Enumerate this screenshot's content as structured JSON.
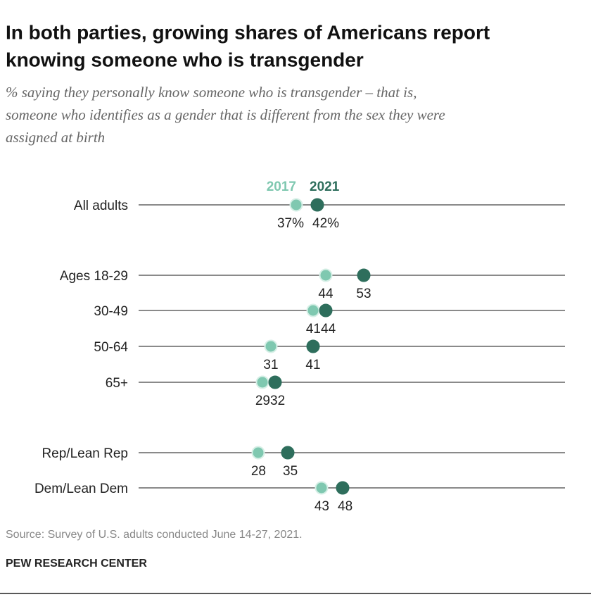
{
  "chart_data": {
    "type": "dot",
    "title_lines": [
      "In both parties, growing shares of Americans report",
      "knowing someone who is transgender"
    ],
    "subtitle_lines": [
      "% saying they personally know someone who is transgender – that is,",
      "someone who identifies as a gender that is different from the sex they were",
      "assigned at birth"
    ],
    "categories": [
      "All adults",
      "Ages 18-29",
      "30-49",
      "50-64",
      "65+",
      "Rep/Lean Rep",
      "Dem/Lean Dem"
    ],
    "series": [
      {
        "name": "2017",
        "color": "#7fc8b0",
        "values": [
          37,
          44,
          41,
          31,
          29,
          28,
          43
        ],
        "value_labels": [
          "37%",
          "44",
          "41",
          "31",
          "29",
          "28",
          "43"
        ]
      },
      {
        "name": "2021",
        "color": "#2e6e5c",
        "values": [
          42,
          53,
          44,
          41,
          32,
          35,
          48
        ],
        "value_labels": [
          "42%",
          "53",
          "44",
          "41",
          "32",
          "35",
          "48"
        ]
      }
    ],
    "xlim": [
      0,
      100
    ],
    "source": "Source: Survey of U.S. adults conducted June 14-27, 2021.",
    "org": "PEW RESEARCH CENTER"
  }
}
